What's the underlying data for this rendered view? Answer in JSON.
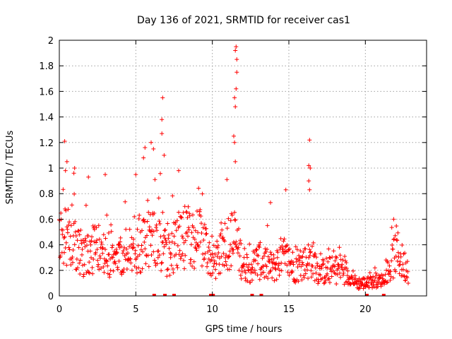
{
  "chart_data": {
    "type": "scatter",
    "title": "Day 136 of 2021, SRMTID for receiver cas1",
    "xlabel": "GPS time / hours",
    "ylabel": "SRMTID / TECUs",
    "xlim": [
      0,
      24
    ],
    "ylim": [
      0,
      2
    ],
    "x_ticks": [
      0,
      5,
      10,
      15,
      20
    ],
    "y_ticks": [
      0,
      0.2,
      0.4,
      0.6,
      0.8,
      1,
      1.2,
      1.4,
      1.6,
      1.8,
      2
    ],
    "x_tick_labels": [
      "0",
      "5",
      "10",
      "15",
      "20"
    ],
    "y_tick_labels": [
      "0",
      "0.2",
      "0.4",
      "0.6",
      "0.8",
      "1",
      "1.2",
      "1.4",
      "1.6",
      "1.8",
      "2"
    ],
    "grid": true,
    "marker": "plus",
    "series": [
      {
        "name": "cas1",
        "color": "#ff0000",
        "data_range": [
          0,
          22.8
        ],
        "median_envelope": [
          [
            0.0,
            0.42
          ],
          [
            0.5,
            0.5
          ],
          [
            1.0,
            0.4
          ],
          [
            1.5,
            0.32
          ],
          [
            2.0,
            0.35
          ],
          [
            2.5,
            0.36
          ],
          [
            3.0,
            0.34
          ],
          [
            3.5,
            0.3
          ],
          [
            4.0,
            0.3
          ],
          [
            4.5,
            0.36
          ],
          [
            5.0,
            0.3
          ],
          [
            5.5,
            0.42
          ],
          [
            6.0,
            0.46
          ],
          [
            6.5,
            0.44
          ],
          [
            7.0,
            0.3
          ],
          [
            7.5,
            0.38
          ],
          [
            8.0,
            0.46
          ],
          [
            8.5,
            0.44
          ],
          [
            9.0,
            0.45
          ],
          [
            9.5,
            0.42
          ],
          [
            10.0,
            0.25
          ],
          [
            10.5,
            0.3
          ],
          [
            11.0,
            0.45
          ],
          [
            11.5,
            0.42
          ],
          [
            12.0,
            0.26
          ],
          [
            12.5,
            0.22
          ],
          [
            13.0,
            0.28
          ],
          [
            13.5,
            0.24
          ],
          [
            14.0,
            0.22
          ],
          [
            14.5,
            0.3
          ],
          [
            15.0,
            0.26
          ],
          [
            15.5,
            0.22
          ],
          [
            16.0,
            0.25
          ],
          [
            16.5,
            0.3
          ],
          [
            17.0,
            0.18
          ],
          [
            17.5,
            0.2
          ],
          [
            18.0,
            0.2
          ],
          [
            18.5,
            0.22
          ],
          [
            19.0,
            0.14
          ],
          [
            19.5,
            0.1
          ],
          [
            20.0,
            0.1
          ],
          [
            20.5,
            0.11
          ],
          [
            21.0,
            0.12
          ],
          [
            21.5,
            0.16
          ],
          [
            22.0,
            0.36
          ],
          [
            22.5,
            0.24
          ],
          [
            22.8,
            0.22
          ]
        ],
        "spikes": [
          [
            0.35,
            1.21
          ],
          [
            0.5,
            1.05
          ],
          [
            0.4,
            0.98
          ],
          [
            1.0,
            1.0
          ],
          [
            0.95,
            0.96
          ],
          [
            1.9,
            0.93
          ],
          [
            3.0,
            0.95
          ],
          [
            5.0,
            0.95
          ],
          [
            5.5,
            1.08
          ],
          [
            5.6,
            1.16
          ],
          [
            6.0,
            1.2
          ],
          [
            6.15,
            1.15
          ],
          [
            6.75,
            1.55
          ],
          [
            6.7,
            1.38
          ],
          [
            6.7,
            1.27
          ],
          [
            6.85,
            1.1
          ],
          [
            7.8,
            0.98
          ],
          [
            11.55,
            1.95
          ],
          [
            11.5,
            1.92
          ],
          [
            11.6,
            1.85
          ],
          [
            11.6,
            1.75
          ],
          [
            11.55,
            1.62
          ],
          [
            11.45,
            1.55
          ],
          [
            11.5,
            1.48
          ],
          [
            11.4,
            1.25
          ],
          [
            11.45,
            1.2
          ],
          [
            11.5,
            1.05
          ],
          [
            16.35,
            1.22
          ],
          [
            16.3,
            1.02
          ],
          [
            16.4,
            1.0
          ],
          [
            16.3,
            0.9
          ],
          [
            16.35,
            0.83
          ],
          [
            14.8,
            0.83
          ],
          [
            13.8,
            0.73
          ],
          [
            21.85,
            0.6
          ]
        ],
        "zero_values": [
          6.2,
          6.9,
          7.5,
          9.9,
          10.05,
          12.6,
          13.2,
          20.1,
          21.2
        ]
      }
    ]
  }
}
